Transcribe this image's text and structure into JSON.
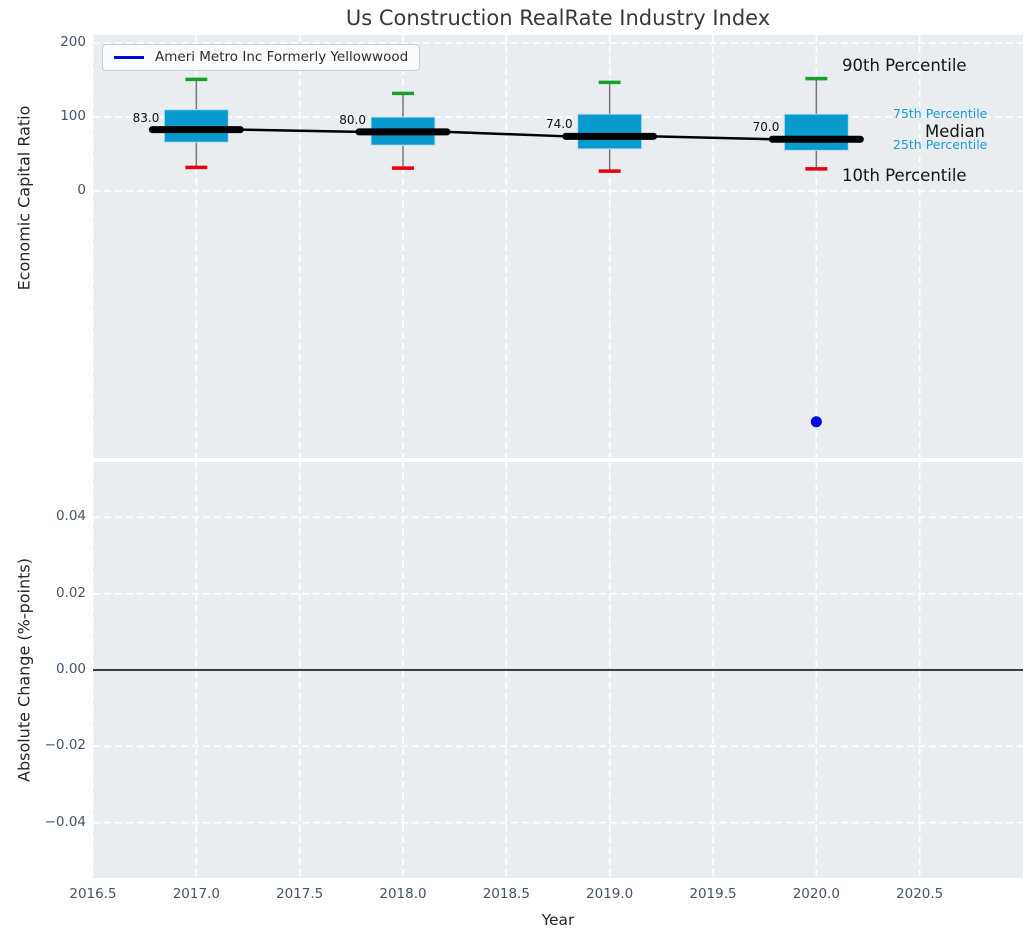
{
  "figure": {
    "title": "Us Construction RealRate Industry Index",
    "background": "#ffffff",
    "axes_background": "#e9edf0",
    "grid_style": "white-dashed"
  },
  "chart_data": [
    {
      "type": "boxplot",
      "title": "Us Construction RealRate Industry Index",
      "ylabel": "Economic Capital Ratio",
      "xlim": [
        2016.5,
        2021.0
      ],
      "ylim": [
        -361,
        211
      ],
      "yticks": [
        200,
        100,
        0
      ],
      "ytick_labels": [
        "200",
        "100",
        "0"
      ],
      "grid": "dashed",
      "legend": {
        "label": "Ameri Metro Inc Formerly Yellowwood",
        "color": "#0000e6",
        "position": "upper-left"
      },
      "categories": [
        2017,
        2018,
        2019,
        2020
      ],
      "boxes": [
        {
          "year": 2017,
          "p10": 32,
          "p25": 66,
          "median": 83,
          "p75": 110,
          "p90": 151,
          "label": "83.0"
        },
        {
          "year": 2018,
          "p10": 31,
          "p25": 62,
          "median": 80,
          "p75": 100,
          "p90": 132,
          "label": "80.0"
        },
        {
          "year": 2019,
          "p10": 27,
          "p25": 57,
          "median": 74,
          "p75": 104,
          "p90": 147,
          "label": "74.0"
        },
        {
          "year": 2020,
          "p10": 30,
          "p25": 55,
          "median": 70,
          "p75": 104,
          "p90": 152,
          "label": "70.0"
        }
      ],
      "median_trend": {
        "color": "#000000",
        "values": [
          83,
          80,
          74,
          70
        ]
      },
      "company_scatter": {
        "name": "Ameri Metro Inc Formerly Yellowwood",
        "color": "#0000e6",
        "points": [
          {
            "x": 2020,
            "y": -312
          }
        ]
      },
      "percentile_labels": {
        "p90": "90th Percentile",
        "p75": "75th Percentile",
        "median": "Median",
        "p25": "25th Percentile",
        "p10": "10th Percentile"
      },
      "colors": {
        "box_fill": "#0a9bce",
        "box_edge": "#bcdff0",
        "whisker": "#777777",
        "cap_top": "#17a02b",
        "cap_bottom": "#e8000d",
        "median_line": "#000000"
      }
    },
    {
      "type": "line",
      "ylabel": "Absolute Change (%-points)",
      "xlabel": "Year",
      "xlim": [
        2016.5,
        2021.0
      ],
      "ylim": [
        -0.0545,
        0.0545
      ],
      "yticks": [
        0.04,
        0.02,
        0.0,
        -0.02,
        -0.04
      ],
      "ytick_labels": [
        "0.04",
        "0.02",
        "0.00",
        "−0.02",
        "−0.04"
      ],
      "xticks": [
        2016.5,
        2017.0,
        2017.5,
        2018.0,
        2018.5,
        2019.0,
        2019.5,
        2020.0,
        2020.5
      ],
      "xtick_labels": [
        "2016.5",
        "2017.0",
        "2017.5",
        "2018.0",
        "2018.5",
        "2019.0",
        "2019.5",
        "2020.0",
        "2020.5"
      ],
      "zero_line": 0.0,
      "series": []
    }
  ]
}
